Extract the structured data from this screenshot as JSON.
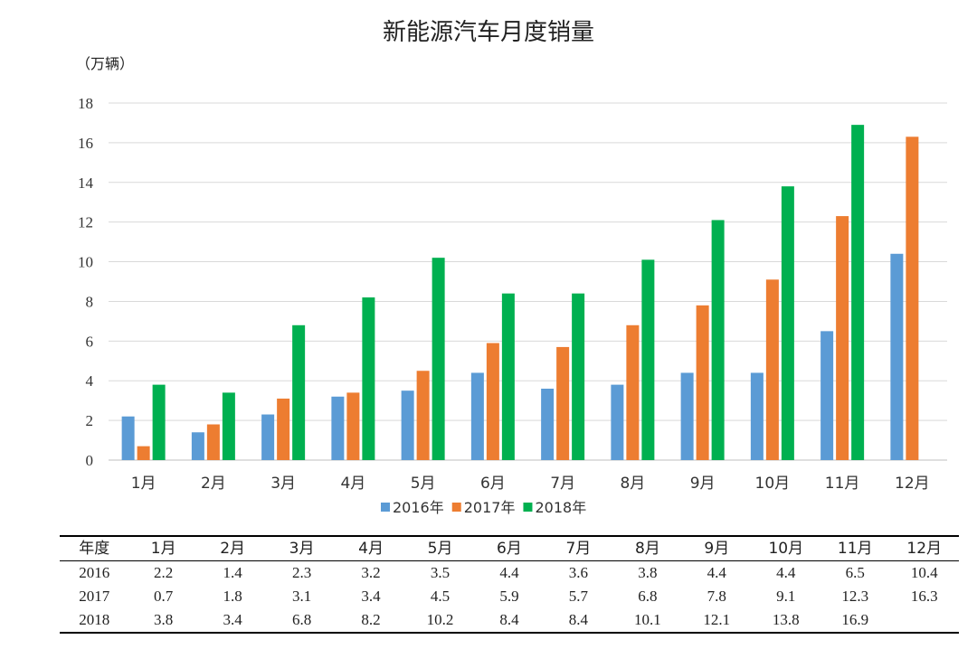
{
  "chart_data": {
    "type": "bar",
    "title": "新能源汽车月度销量",
    "ylabel": "（万辆）",
    "xlabel": "",
    "categories": [
      "1月",
      "2月",
      "3月",
      "4月",
      "5月",
      "6月",
      "7月",
      "8月",
      "9月",
      "10月",
      "11月",
      "12月"
    ],
    "ylim": [
      0,
      18
    ],
    "yticks": [
      "0",
      "2",
      "4",
      "6",
      "8",
      "10",
      "12",
      "14",
      "16",
      "18"
    ],
    "grid": true,
    "legend_position": "bottom",
    "series": [
      {
        "name": "2016年",
        "color": "#5b9bd5",
        "values": [
          2.2,
          1.4,
          2.3,
          3.2,
          3.5,
          4.4,
          3.6,
          3.8,
          4.4,
          4.4,
          6.5,
          10.4
        ]
      },
      {
        "name": "2017年",
        "color": "#ed7d31",
        "values": [
          0.7,
          1.8,
          3.1,
          3.4,
          4.5,
          5.9,
          5.7,
          6.8,
          7.8,
          9.1,
          12.3,
          16.3
        ]
      },
      {
        "name": "2018年",
        "color": "#00b050",
        "values": [
          3.8,
          3.4,
          6.8,
          8.2,
          10.2,
          8.4,
          8.4,
          10.1,
          12.1,
          13.8,
          16.9,
          null
        ]
      }
    ]
  },
  "table": {
    "header": [
      "年度",
      "1月",
      "2月",
      "3月",
      "4月",
      "5月",
      "6月",
      "7月",
      "8月",
      "9月",
      "10月",
      "11月",
      "12月"
    ],
    "rows": [
      [
        "2016",
        "2.2",
        "1.4",
        "2.3",
        "3.2",
        "3.5",
        "4.4",
        "3.6",
        "3.8",
        "4.4",
        "4.4",
        "6.5",
        "10.4"
      ],
      [
        "2017",
        "0.7",
        "1.8",
        "3.1",
        "3.4",
        "4.5",
        "5.9",
        "5.7",
        "6.8",
        "7.8",
        "9.1",
        "12.3",
        "16.3"
      ],
      [
        "2018",
        "3.8",
        "3.4",
        "6.8",
        "8.2",
        "10.2",
        "8.4",
        "8.4",
        "10.1",
        "12.1",
        "13.8",
        "16.9",
        ""
      ]
    ]
  }
}
